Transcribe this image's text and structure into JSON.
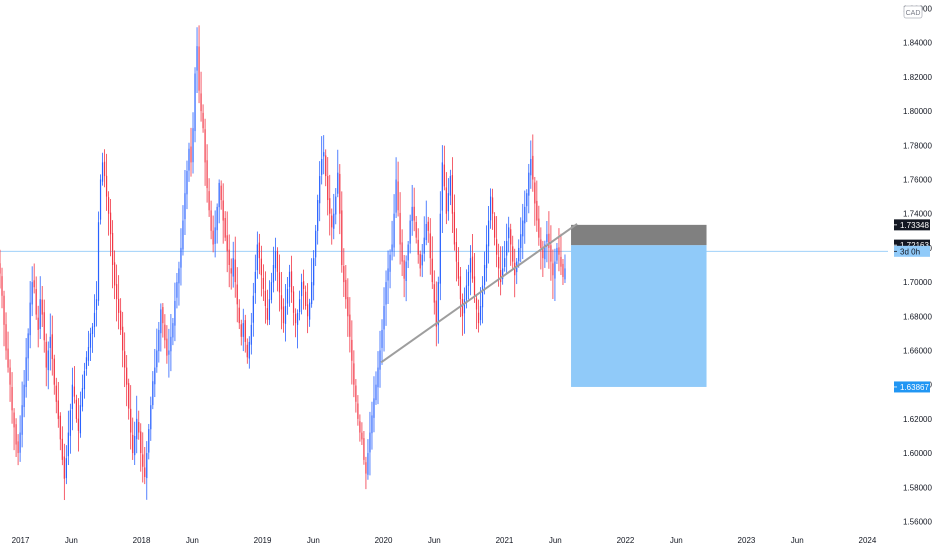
{
  "chart_data": {
    "type": "candlestick",
    "currency_label": "CAD",
    "y_range": [
      1.555,
      1.865
    ],
    "y_ticks": [
      "1.56000",
      "1.58000",
      "1.60000",
      "1.62000",
      "1.64000",
      "1.66000",
      "1.68000",
      "1.70000",
      "1.72000",
      "1.74000",
      "1.76000",
      "1.78000",
      "1.80000",
      "1.82000",
      "1.84000",
      "1.86000"
    ],
    "x_range": [
      2016.83,
      2024.17
    ],
    "x_ticks": [
      {
        "label": "2017",
        "t": 2017.0
      },
      {
        "label": "Jun",
        "t": 2017.42
      },
      {
        "label": "2018",
        "t": 2018.0
      },
      {
        "label": "Jun",
        "t": 2018.42
      },
      {
        "label": "2019",
        "t": 2019.0
      },
      {
        "label": "Jun",
        "t": 2019.42
      },
      {
        "label": "2020",
        "t": 2020.0
      },
      {
        "label": "Jun",
        "t": 2020.42
      },
      {
        "label": "2021",
        "t": 2021.0
      },
      {
        "label": "Jun",
        "t": 2021.42
      },
      {
        "label": "2022",
        "t": 2022.0
      },
      {
        "label": "Jun",
        "t": 2022.42
      },
      {
        "label": "2023",
        "t": 2023.0
      },
      {
        "label": "Jun",
        "t": 2023.42
      },
      {
        "label": "2024",
        "t": 2024.0
      }
    ],
    "current_price": 1.718,
    "countdown_label": "3d 0h",
    "colors": {
      "up": "#2962ff",
      "down": "#f23645",
      "stop_zone": "#808080",
      "target_zone": "#90caf9",
      "trendline": "#9e9e9e",
      "price_line": "#90caf9"
    },
    "price_labels": [
      {
        "text": "1.73348",
        "value": 1.73348,
        "bg": "#131722",
        "fg": "#ffffff"
      },
      {
        "text": "1.72163",
        "value": 1.72163,
        "bg": "#131722",
        "fg": "#ffffff"
      },
      {
        "text": "3d 0h",
        "value": 1.718,
        "bg": "#90caf9",
        "fg": "#131722"
      },
      {
        "text": "1.63867",
        "value": 1.63867,
        "bg": "#2196f3",
        "fg": "#ffffff"
      }
    ],
    "position": {
      "t_start": 2021.55,
      "t_end": 2022.67,
      "stop": 1.73348,
      "entry": 1.72163,
      "target": 1.63867
    },
    "trendline": {
      "t1": 2019.98,
      "p1": 1.653,
      "t2": 2021.6,
      "p2": 1.734
    },
    "closes": [
      1.705,
      1.692,
      1.675,
      1.66,
      1.65,
      1.64,
      1.625,
      1.615,
      1.605,
      1.6,
      1.612,
      1.628,
      1.64,
      1.656,
      1.67,
      1.688,
      1.7,
      1.697,
      1.681,
      1.672,
      1.69,
      1.681,
      1.666,
      1.65,
      1.66,
      1.668,
      1.655,
      1.64,
      1.63,
      1.62,
      1.608,
      1.596,
      1.585,
      1.597,
      1.612,
      1.625,
      1.64,
      1.633,
      1.62,
      1.613,
      1.628,
      1.638,
      1.648,
      1.656,
      1.662,
      1.67,
      1.674,
      1.682,
      1.69,
      1.735,
      1.76,
      1.77,
      1.762,
      1.75,
      1.74,
      1.728,
      1.71,
      1.698,
      1.69,
      1.682,
      1.672,
      1.66,
      1.65,
      1.64,
      1.626,
      1.612,
      1.6,
      1.61,
      1.62,
      1.612,
      1.6,
      1.592,
      1.586,
      1.6,
      1.614,
      1.628,
      1.642,
      1.65,
      1.66,
      1.672,
      1.684,
      1.676,
      1.666,
      1.657,
      1.66,
      1.668,
      1.676,
      1.689,
      1.7,
      1.708,
      1.72,
      1.736,
      1.752,
      1.765,
      1.778,
      1.77,
      1.79,
      1.822,
      1.838,
      1.812,
      1.8,
      1.79,
      1.77,
      1.755,
      1.742,
      1.73,
      1.722,
      1.732,
      1.744,
      1.758,
      1.748,
      1.736,
      1.726,
      1.718,
      1.71,
      1.705,
      1.714,
      1.7,
      1.687,
      1.676,
      1.668,
      1.676,
      1.665,
      1.656,
      1.665,
      1.675,
      1.692,
      1.706,
      1.722,
      1.714,
      1.704,
      1.696,
      1.686,
      1.678,
      1.69,
      1.7,
      1.71,
      1.718,
      1.706,
      1.694,
      1.684,
      1.676,
      1.686,
      1.696,
      1.706,
      1.694,
      1.682,
      1.676,
      1.682,
      1.69,
      1.7,
      1.696,
      1.686,
      1.68,
      1.688,
      1.7,
      1.714,
      1.73,
      1.748,
      1.762,
      1.772,
      1.776,
      1.762,
      1.748,
      1.74,
      1.732,
      1.74,
      1.75,
      1.764,
      1.74,
      1.71,
      1.7,
      1.69,
      1.68,
      1.668,
      1.654,
      1.64,
      1.63,
      1.62,
      1.612,
      1.608,
      1.596,
      1.588,
      1.6,
      1.612,
      1.622,
      1.632,
      1.64,
      1.65,
      1.66,
      1.672,
      1.686,
      1.7,
      1.708,
      1.716,
      1.722,
      1.74,
      1.76,
      1.742,
      1.722,
      1.712,
      1.702,
      1.712,
      1.722,
      1.736,
      1.744,
      1.736,
      1.726,
      1.716,
      1.708,
      1.716,
      1.726,
      1.734,
      1.73,
      1.714,
      1.7,
      1.688,
      1.674,
      1.7,
      1.74,
      1.77,
      1.756,
      1.74,
      1.752,
      1.762,
      1.74,
      1.722,
      1.712,
      1.702,
      1.69,
      1.68,
      1.69,
      1.698,
      1.706,
      1.714,
      1.702,
      1.692,
      1.684,
      1.676,
      1.686,
      1.698,
      1.71,
      1.722,
      1.736,
      1.75,
      1.74,
      1.726,
      1.716,
      1.708,
      1.7,
      1.708,
      1.714,
      1.724,
      1.732,
      1.722,
      1.712,
      1.704,
      1.712,
      1.72,
      1.728,
      1.736,
      1.744,
      1.752,
      1.764,
      1.772,
      1.76,
      1.746,
      1.736,
      1.726,
      1.72,
      1.714,
      1.722,
      1.728,
      1.72,
      1.712,
      1.704,
      1.712,
      1.72,
      1.716,
      1.709,
      1.703,
      1.708
    ]
  }
}
